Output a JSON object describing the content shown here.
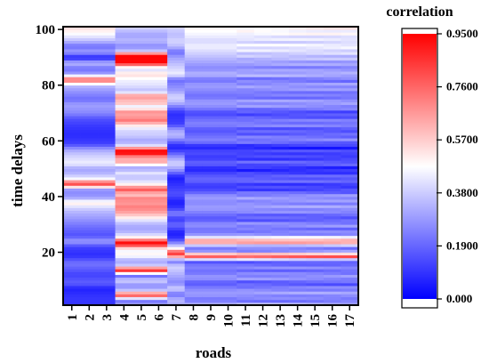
{
  "chart_data": {
    "type": "heatmap",
    "xlabel": "roads",
    "ylabel": "time delays",
    "x_categories": [
      "1",
      "2",
      "3",
      "4",
      "5",
      "6",
      "7",
      "8",
      "9",
      "10",
      "11",
      "12",
      "13",
      "14",
      "15",
      "16",
      "17"
    ],
    "y_ticks": [
      20,
      40,
      60,
      80,
      100
    ],
    "ylim": [
      1,
      101
    ],
    "colorbar": {
      "title": "correlation",
      "ticks": [
        "0.000",
        "0.1900",
        "0.3800",
        "0.5700",
        "0.7600",
        "0.9500"
      ],
      "range": [
        0,
        0.95
      ],
      "colors": [
        "#0000ff",
        "#ffffff",
        "#ff0000"
      ]
    },
    "column_groups": [
      {
        "columns": [
          1,
          3
        ],
        "label": "roads 1-3"
      },
      {
        "columns": [
          4,
          6
        ],
        "label": "roads 4-6"
      },
      {
        "columns": [
          7,
          7
        ],
        "label": "road 7"
      },
      {
        "columns": [
          8,
          10
        ],
        "label": "roads 8-10"
      },
      {
        "columns": [
          11,
          17
        ],
        "label": "roads 11-17"
      }
    ],
    "profiles": {
      "g1": [
        [
          1,
          0.1
        ],
        [
          4,
          0.1
        ],
        [
          7,
          0.06
        ],
        [
          9,
          0.18
        ],
        [
          12,
          0.12
        ],
        [
          16,
          0.22
        ],
        [
          19,
          0.08
        ],
        [
          22,
          0.12
        ],
        [
          24,
          0.3
        ],
        [
          26,
          0.15
        ],
        [
          29,
          0.2
        ],
        [
          32,
          0.28
        ],
        [
          35,
          0.35
        ],
        [
          37,
          0.45
        ],
        [
          38,
          0.55
        ],
        [
          39,
          0.35
        ],
        [
          41,
          0.25
        ],
        [
          43,
          0.3
        ],
        [
          44,
          0.75
        ],
        [
          45,
          0.85
        ],
        [
          46,
          0.5
        ],
        [
          48,
          0.35
        ],
        [
          50,
          0.3
        ],
        [
          52,
          0.45
        ],
        [
          55,
          0.38
        ],
        [
          57,
          0.3
        ],
        [
          59,
          0.12
        ],
        [
          62,
          0.08
        ],
        [
          65,
          0.1
        ],
        [
          68,
          0.15
        ],
        [
          70,
          0.25
        ],
        [
          73,
          0.3
        ],
        [
          75,
          0.2
        ],
        [
          78,
          0.28
        ],
        [
          80,
          0.35
        ],
        [
          81,
          0.6
        ],
        [
          82,
          0.78
        ],
        [
          83,
          0.6
        ],
        [
          84,
          0.3
        ],
        [
          86,
          0.2
        ],
        [
          88,
          0.35
        ],
        [
          90,
          0.05
        ],
        [
          92,
          0.3
        ],
        [
          94,
          0.2
        ],
        [
          96,
          0.35
        ],
        [
          98,
          0.45
        ],
        [
          101,
          0.55
        ]
      ],
      "g2": [
        [
          1,
          0.3
        ],
        [
          3,
          0.2
        ],
        [
          4,
          0.65
        ],
        [
          5,
          0.85
        ],
        [
          6,
          0.4
        ],
        [
          8,
          0.25
        ],
        [
          10,
          0.4
        ],
        [
          12,
          0.15
        ],
        [
          13,
          0.8
        ],
        [
          14,
          0.9
        ],
        [
          15,
          0.4
        ],
        [
          17,
          0.3
        ],
        [
          19,
          0.5
        ],
        [
          21,
          0.45
        ],
        [
          22,
          0.65
        ],
        [
          23,
          0.95
        ],
        [
          24,
          0.9
        ],
        [
          25,
          0.55
        ],
        [
          27,
          0.35
        ],
        [
          29,
          0.3
        ],
        [
          31,
          0.38
        ],
        [
          33,
          0.55
        ],
        [
          35,
          0.68
        ],
        [
          37,
          0.72
        ],
        [
          38,
          0.62
        ],
        [
          39,
          0.75
        ],
        [
          40,
          0.65
        ],
        [
          41,
          0.55
        ],
        [
          42,
          0.75
        ],
        [
          43,
          0.8
        ],
        [
          44,
          0.55
        ],
        [
          45,
          0.45
        ],
        [
          47,
          0.35
        ],
        [
          49,
          0.45
        ],
        [
          50,
          0.25
        ],
        [
          52,
          0.55
        ],
        [
          53,
          0.7
        ],
        [
          54,
          0.55
        ],
        [
          55,
          0.88
        ],
        [
          56,
          0.95
        ],
        [
          57,
          0.9
        ],
        [
          58,
          0.45
        ],
        [
          60,
          0.3
        ],
        [
          62,
          0.38
        ],
        [
          64,
          0.4
        ],
        [
          66,
          0.55
        ],
        [
          67,
          0.7
        ],
        [
          68,
          0.75
        ],
        [
          69,
          0.6
        ],
        [
          70,
          0.7
        ],
        [
          71,
          0.65
        ],
        [
          72,
          0.4
        ],
        [
          73,
          0.5
        ],
        [
          74,
          0.65
        ],
        [
          75,
          0.55
        ],
        [
          76,
          0.75
        ],
        [
          77,
          0.5
        ],
        [
          78,
          0.35
        ],
        [
          80,
          0.42
        ],
        [
          82,
          0.45
        ],
        [
          84,
          0.55
        ],
        [
          86,
          0.38
        ],
        [
          87,
          0.6
        ],
        [
          88,
          0.95
        ],
        [
          89,
          0.93
        ],
        [
          90,
          0.95
        ],
        [
          91,
          0.93
        ],
        [
          92,
          0.4
        ],
        [
          94,
          0.25
        ],
        [
          96,
          0.35
        ],
        [
          98,
          0.3
        ],
        [
          101,
          0.4
        ]
      ],
      "g3": [
        [
          1,
          0.3
        ],
        [
          3,
          0.35
        ],
        [
          5,
          0.2
        ],
        [
          7,
          0.4
        ],
        [
          9,
          0.25
        ],
        [
          11,
          0.3
        ],
        [
          13,
          0.35
        ],
        [
          15,
          0.4
        ],
        [
          17,
          0.2
        ],
        [
          18,
          0.5
        ],
        [
          19,
          0.75
        ],
        [
          20,
          0.9
        ],
        [
          21,
          0.55
        ],
        [
          23,
          0.3
        ],
        [
          25,
          0.1
        ],
        [
          27,
          0.05
        ],
        [
          30,
          0.2
        ],
        [
          32,
          0.1
        ],
        [
          34,
          0.25
        ],
        [
          36,
          0.1
        ],
        [
          38,
          0.05
        ],
        [
          41,
          0.15
        ],
        [
          44,
          0.1
        ],
        [
          47,
          0.05
        ],
        [
          50,
          0.3
        ],
        [
          52,
          0.4
        ],
        [
          54,
          0.3
        ],
        [
          56,
          0.15
        ],
        [
          58,
          0.05
        ],
        [
          60,
          0.2
        ],
        [
          62,
          0.35
        ],
        [
          64,
          0.3
        ],
        [
          66,
          0.12
        ],
        [
          68,
          0.1
        ],
        [
          70,
          0.08
        ],
        [
          72,
          0.2
        ],
        [
          74,
          0.35
        ],
        [
          76,
          0.4
        ],
        [
          78,
          0.3
        ],
        [
          80,
          0.25
        ],
        [
          82,
          0.2
        ],
        [
          84,
          0.45
        ],
        [
          86,
          0.4
        ],
        [
          88,
          0.35
        ],
        [
          90,
          0.3
        ],
        [
          92,
          0.2
        ],
        [
          94,
          0.35
        ],
        [
          96,
          0.4
        ],
        [
          98,
          0.35
        ],
        [
          101,
          0.4
        ]
      ],
      "g4": [
        [
          1,
          0.35
        ],
        [
          3,
          0.2
        ],
        [
          5,
          0.3
        ],
        [
          7,
          0.25
        ],
        [
          9,
          0.15
        ],
        [
          11,
          0.3
        ],
        [
          13,
          0.2
        ],
        [
          15,
          0.25
        ],
        [
          17,
          0.12
        ],
        [
          18,
          0.7
        ],
        [
          19,
          0.85
        ],
        [
          20,
          0.3
        ],
        [
          22,
          0.2
        ],
        [
          23,
          0.55
        ],
        [
          24,
          0.7
        ],
        [
          25,
          0.55
        ],
        [
          26,
          0.3
        ],
        [
          28,
          0.2
        ],
        [
          30,
          0.28
        ],
        [
          32,
          0.15
        ],
        [
          34,
          0.22
        ],
        [
          36,
          0.3
        ],
        [
          38,
          0.25
        ],
        [
          40,
          0.3
        ],
        [
          42,
          0.15
        ],
        [
          44,
          0.1
        ],
        [
          46,
          0.2
        ],
        [
          48,
          0.15
        ],
        [
          50,
          0.05
        ],
        [
          52,
          0.2
        ],
        [
          54,
          0.1
        ],
        [
          56,
          0.15
        ],
        [
          58,
          0.05
        ],
        [
          60,
          0.25
        ],
        [
          62,
          0.2
        ],
        [
          64,
          0.15
        ],
        [
          66,
          0.25
        ],
        [
          68,
          0.2
        ],
        [
          70,
          0.12
        ],
        [
          72,
          0.25
        ],
        [
          74,
          0.3
        ],
        [
          76,
          0.2
        ],
        [
          78,
          0.25
        ],
        [
          80,
          0.3
        ],
        [
          82,
          0.2
        ],
        [
          84,
          0.35
        ],
        [
          86,
          0.25
        ],
        [
          88,
          0.3
        ],
        [
          90,
          0.35
        ],
        [
          92,
          0.4
        ],
        [
          94,
          0.45
        ],
        [
          96,
          0.4
        ],
        [
          98,
          0.45
        ],
        [
          101,
          0.5
        ]
      ]
    }
  }
}
